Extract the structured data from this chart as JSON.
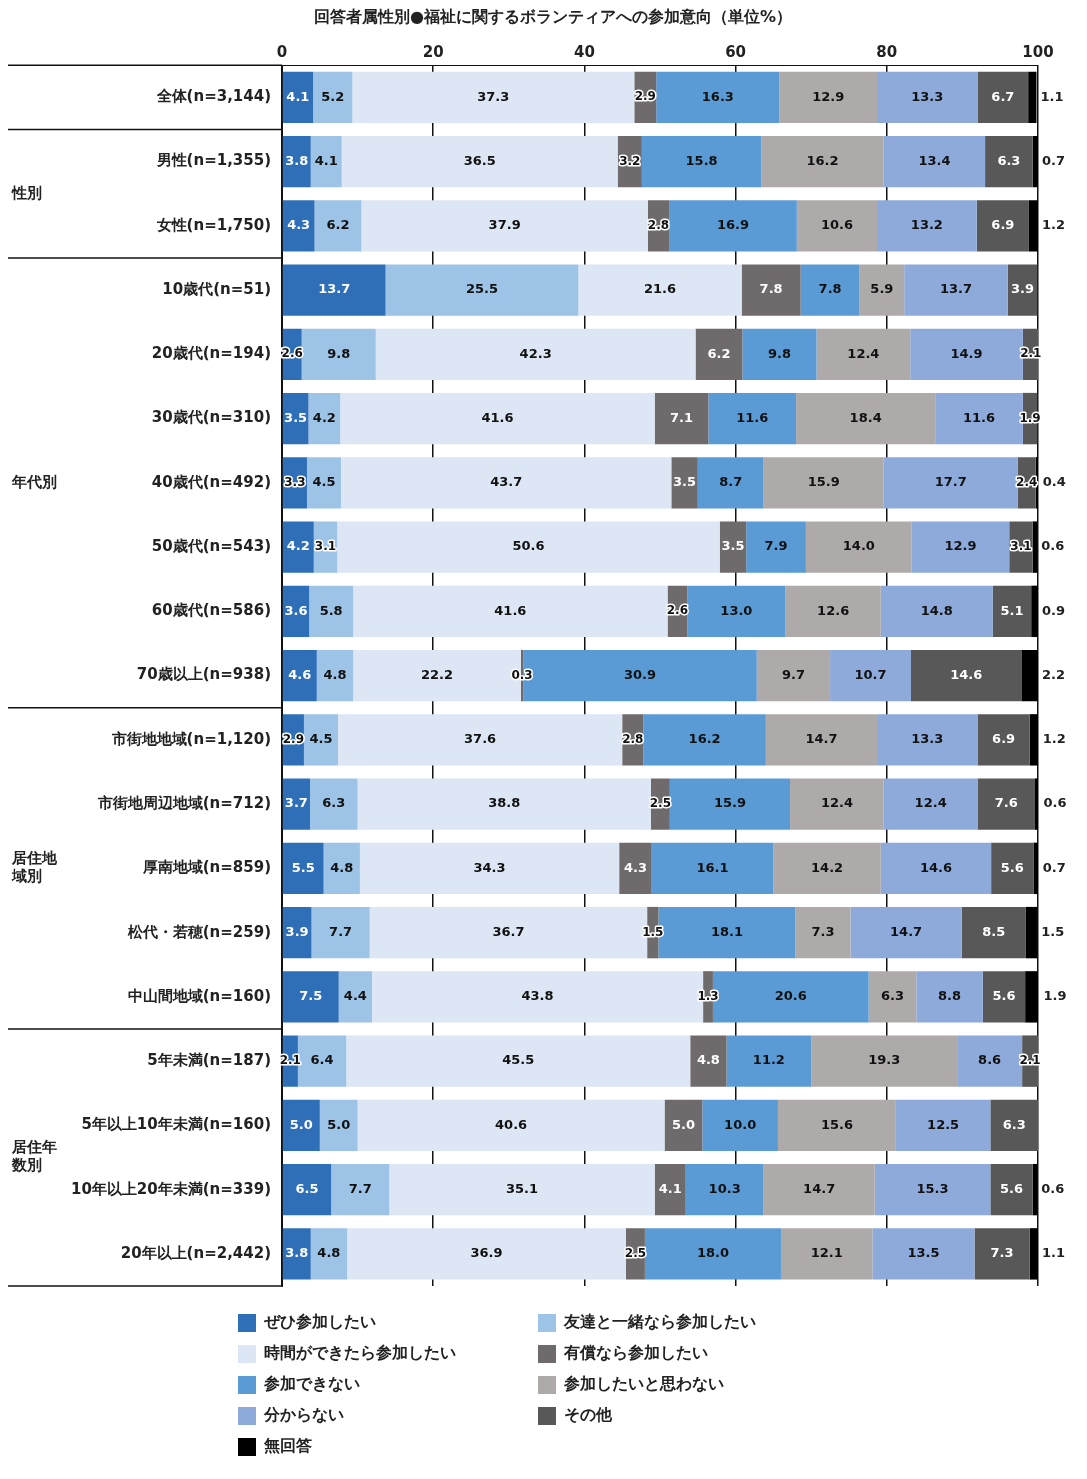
{
  "chart_data": {
    "type": "bar",
    "orientation": "horizontal",
    "stacked": true,
    "title": "回答者属性別●福祉に関するボランティアへの参加意向（単位%）",
    "categories": [
      "全体(n=3,144)",
      "男性(n=1,355)",
      "女性(n=1,750)",
      "10歳代(n=51)",
      "20歳代(n=194)",
      "30歳代(n=310)",
      "40歳代(n=492)",
      "50歳代(n=543)",
      "60歳代(n=586)",
      "70歳以上(n=938)",
      "市街地地域(n=1,120)",
      "市街地周辺地域(n=712)",
      "厚南地域(n=859)",
      "松代・若穂(n=259)",
      "中山間地域(n=160)",
      "5年未満(n=187)",
      "5年以上10年未満(n=160)",
      "10年以上20年未満(n=339)",
      "20年以上(n=2,442)"
    ],
    "xlim": [
      0,
      100
    ],
    "xticks": [
      0,
      20,
      40,
      60,
      80,
      100
    ],
    "grid": "x",
    "legend": "bottom",
    "annotations": [
      "性別",
      "年代別",
      "居住地域別",
      "居住年数別"
    ],
    "series": [
      {
        "name": "ぜひ参加したい",
        "color": "#2e6fb7",
        "values": [
          4.1,
          3.8,
          4.3,
          13.7,
          2.6,
          3.5,
          3.3,
          4.2,
          3.6,
          4.6,
          2.9,
          3.7,
          5.5,
          3.9,
          7.5,
          2.1,
          5.0,
          6.5,
          3.8
        ],
        "value_labels": [
          "4.1",
          "3.8",
          "4.3",
          "13.7",
          "2.6",
          "3.5",
          "3.3",
          "4.2",
          "3.6",
          "4.6",
          "2.9",
          "3.7",
          "5.5",
          "3.9",
          "7.5",
          "2.1",
          "5.0",
          "6.5",
          "3.8"
        ]
      },
      {
        "name": "友達と一緒なら参加したい",
        "color": "#9dc3e6",
        "values": [
          5.2,
          4.1,
          6.2,
          25.5,
          9.8,
          4.2,
          4.5,
          3.1,
          5.8,
          4.8,
          4.5,
          6.3,
          4.8,
          7.7,
          4.4,
          6.4,
          5.0,
          7.7,
          4.8
        ],
        "value_labels": [
          "5.2",
          "4.1",
          "6.2",
          "25.5",
          "9.8",
          "4.2",
          "4.5",
          "3.1",
          "5.8",
          "4.8",
          "4.5",
          "6.3",
          "4.8",
          "7.7",
          "4.4",
          "6.4",
          "5.0",
          "7.7",
          "4.8"
        ]
      },
      {
        "name": "時間ができたら参加したい",
        "color": "#dce6f4",
        "values": [
          37.3,
          36.5,
          37.9,
          21.6,
          42.3,
          41.6,
          43.7,
          50.6,
          41.6,
          22.2,
          37.6,
          38.8,
          34.3,
          36.7,
          43.8,
          45.5,
          40.6,
          35.1,
          36.9
        ],
        "value_labels": [
          "37.3",
          "36.5",
          "37.9",
          "21.6",
          "42.3",
          "41.6",
          "43.7",
          "50.6",
          "41.6",
          "22.2",
          "37.6",
          "38.8",
          "34.3",
          "36.7",
          "43.8",
          "45.5",
          "40.6",
          "35.1",
          "36.9"
        ]
      },
      {
        "name": "有償なら参加したい",
        "color": "#6f6b6c",
        "values": [
          2.9,
          3.2,
          2.8,
          7.8,
          6.2,
          7.1,
          3.5,
          3.5,
          2.6,
          0.3,
          2.8,
          2.5,
          4.3,
          1.5,
          1.3,
          4.8,
          5.0,
          4.1,
          2.5
        ],
        "value_labels": [
          "2.9",
          "3.2",
          "2.8",
          "7.8",
          "6.2",
          "7.1",
          "3.5",
          "3.5",
          "2.6",
          "0.3",
          "2.8",
          "2.5",
          "4.3",
          "1.5",
          "1.3",
          "4.8",
          "5.0",
          "4.1",
          "2.5"
        ]
      },
      {
        "name": "参加できない",
        "color": "#5b9bd5",
        "values": [
          16.3,
          15.8,
          16.9,
          7.8,
          9.8,
          11.6,
          8.7,
          7.9,
          13.0,
          30.9,
          16.2,
          15.9,
          16.1,
          18.1,
          20.6,
          11.2,
          10.0,
          10.3,
          18.0
        ],
        "value_labels": [
          "16.3",
          "15.8",
          "16.9",
          "7.8",
          "9.8",
          "11.6",
          "8.7",
          "7.9",
          "13.0",
          "30.9",
          "16.2",
          "15.9",
          "16.1",
          "18.1",
          "20.6",
          "11.2",
          "10.0",
          "10.3",
          "18.0"
        ]
      },
      {
        "name": "参加したいと思わない",
        "color": "#aeaaaa",
        "values": [
          12.9,
          16.2,
          10.6,
          5.9,
          12.4,
          18.4,
          15.9,
          14.0,
          12.6,
          9.7,
          14.7,
          12.4,
          14.2,
          7.3,
          6.3,
          19.3,
          15.6,
          14.7,
          12.1
        ],
        "value_labels": [
          "12.9",
          "16.2",
          "10.6",
          "5.9",
          "12.4",
          "18.4",
          "15.9",
          "14.0",
          "12.6",
          "9.7",
          "14.7",
          "12.4",
          "14.2",
          "7.3",
          "6.3",
          "19.3",
          "15.6",
          "14.7",
          "12.1"
        ]
      },
      {
        "name": "分からない",
        "color": "#8eaadb",
        "values": [
          13.3,
          13.4,
          13.2,
          13.7,
          14.9,
          11.6,
          17.7,
          12.9,
          14.8,
          10.7,
          13.3,
          12.4,
          14.6,
          14.7,
          8.8,
          8.6,
          12.5,
          15.3,
          13.5
        ],
        "value_labels": [
          "13.3",
          "13.4",
          "13.2",
          "13.7",
          "14.9",
          "11.6",
          "17.7",
          "12.9",
          "14.8",
          "10.7",
          "13.3",
          "12.4",
          "14.6",
          "14.7",
          "8.8",
          "8.6",
          "12.5",
          "15.3",
          "13.5"
        ]
      },
      {
        "name": "その他",
        "color": "#585858",
        "values": [
          6.7,
          6.3,
          6.9,
          3.9,
          2.1,
          1.9,
          2.4,
          3.1,
          5.1,
          14.6,
          6.9,
          7.6,
          5.6,
          8.5,
          5.6,
          2.1,
          6.3,
          5.6,
          7.3
        ],
        "value_labels": [
          "6.7",
          "6.3",
          "6.9",
          "3.9",
          "2.1",
          "1.9",
          "2.4",
          "3.1",
          "5.1",
          "14.6",
          "6.9",
          "7.6",
          "5.6",
          "8.5",
          "5.6",
          "2.1",
          "6.3",
          "5.6",
          "7.3"
        ]
      },
      {
        "name": "無回答",
        "color": "#000000",
        "values": [
          1.1,
          0.7,
          1.2,
          null,
          null,
          null,
          0.4,
          0.6,
          0.9,
          2.2,
          1.2,
          0.6,
          0.7,
          1.5,
          1.9,
          null,
          null,
          0.6,
          1.1
        ],
        "value_labels": [
          "1.1",
          "0.7",
          "1.2",
          null,
          null,
          null,
          "0.4",
          "0.6",
          "0.9",
          "2.2",
          "1.2",
          "0.6",
          "0.7",
          "1.5",
          "1.9",
          null,
          null,
          "0.6",
          "1.1"
        ]
      }
    ]
  }
}
